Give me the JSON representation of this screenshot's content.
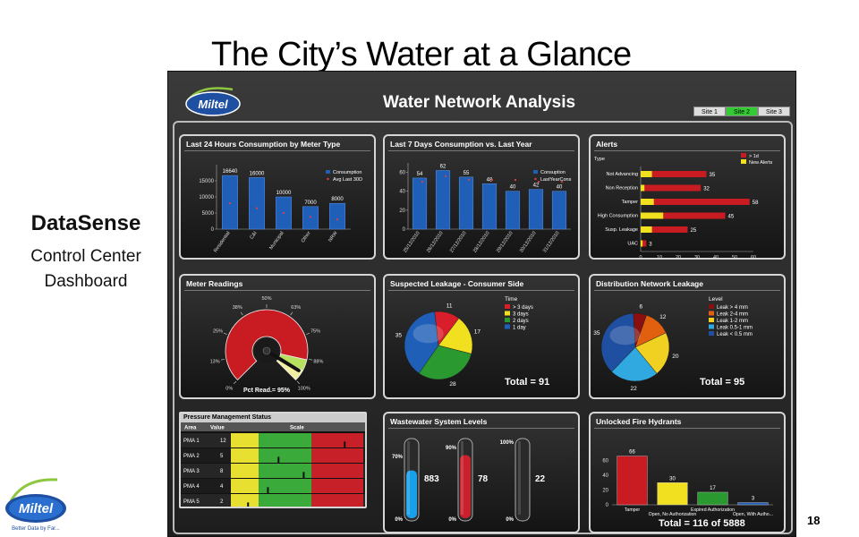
{
  "slide": {
    "title": "The City’s Water at a Glance",
    "left_title": "DataSense",
    "left_sub1": "Control Center",
    "left_sub2": "Dashboard",
    "page_number": "18",
    "logo_text": "Miltel",
    "logo_tagline": "Better Data by Far..."
  },
  "app": {
    "logo_text": "Miltel",
    "title": "Water Network Analysis",
    "tabs": [
      {
        "label": "Site 1",
        "active": false
      },
      {
        "label": "Site 2",
        "active": true
      },
      {
        "label": "Site 3",
        "active": false
      }
    ]
  },
  "panels": {
    "consumption24": {
      "title": "Last 24 Hours Consumption by Meter Type",
      "legend": [
        "Consumption",
        "Avg Last 30D"
      ],
      "yticks": [
        "15000",
        "10000",
        "5000",
        "0"
      ],
      "categories": [
        "Residential",
        "C&I",
        "Municipal",
        "Other",
        "NRW"
      ],
      "values": [
        16640,
        16000,
        10000,
        7000,
        8000
      ],
      "labels": [
        "16640",
        "16000",
        "10000",
        "7000",
        "8000"
      ],
      "avg": [
        8000,
        6500,
        5000,
        3800,
        3000
      ],
      "ymax": 20000
    },
    "consumption7": {
      "title": "Last 7 Days Consumption vs. Last Year",
      "legend": [
        "Consuption",
        "LastYearCons"
      ],
      "yticks": [
        "60",
        "40",
        "20",
        "0"
      ],
      "categories": [
        "25/12/2010",
        "26/12/2010",
        "27/12/2010",
        "28/12/2010",
        "29/12/2010",
        "30/12/2010",
        "31/12/2010"
      ],
      "values": [
        54,
        62,
        55,
        48,
        40,
        42,
        40
      ],
      "labels": [
        "54",
        "62",
        "55",
        "48",
        "40",
        "42",
        "40"
      ],
      "lastyear": [
        50,
        56,
        52,
        52,
        52,
        50,
        50
      ],
      "ymax": 70
    },
    "alerts": {
      "title": "Alerts",
      "type_label": "Type",
      "legend": [
        "> 1d",
        "New Alerts"
      ],
      "categories": [
        "Not Advancing",
        "Non Reception",
        "Tamper",
        "High Consumption",
        "Susp. Leakage",
        "UAC"
      ],
      "totals": [
        35,
        32,
        58,
        45,
        25,
        3
      ],
      "new_alerts": [
        6,
        2,
        7,
        12,
        6,
        1
      ],
      "labels": [
        "35",
        "32",
        "58",
        "45",
        "25",
        "3"
      ],
      "xticks": [
        "0",
        "10",
        "20",
        "30",
        "40",
        "50",
        "60"
      ],
      "xmax": 60
    },
    "meter": {
      "title": "Meter Readings",
      "ticks": [
        "0%",
        "13%",
        "25%",
        "38%",
        "50%",
        "63%",
        "75%",
        "88%",
        "100%"
      ],
      "readout": "Pct Read.= 95%",
      "value": 95
    },
    "leak_consumer": {
      "title": "Suspected Leakage - Consumer Side",
      "legend_title": "Time",
      "legend": [
        "> 3 days",
        "3 days",
        "2 days",
        "1 day"
      ],
      "colors": [
        "#d81e2a",
        "#f0e020",
        "#2a9a30",
        "#1f5fb8"
      ],
      "values": [
        11,
        17,
        28,
        35
      ],
      "slice_labels": [
        "11",
        "17",
        "28",
        "35"
      ],
      "total": "Total = 91"
    },
    "leak_network": {
      "title": "Distribution Network Leakage",
      "legend_title": "Level",
      "legend": [
        "Leak > 4 mm",
        "Leak 2-4 mm",
        "Leak 1-2 mm",
        "Leak 0.5-1 mm",
        "Leak < 0.5 mm"
      ],
      "colors": [
        "#8a1010",
        "#e06010",
        "#f0d020",
        "#30a8e0",
        "#1f4fa0"
      ],
      "values": [
        6,
        12,
        20,
        22,
        35
      ],
      "slice_labels": [
        "6",
        "12",
        "20",
        "22",
        "35"
      ],
      "total": "Total = 95"
    },
    "pressure": {
      "title": "Pressure Management Status",
      "col_area": "Area",
      "col_value": "Value",
      "col_scale": "Scale",
      "rows": [
        {
          "area": "PMA 1",
          "value": "12",
          "pos": 0.86
        },
        {
          "area": "PMA 2",
          "value": "5",
          "pos": 0.36
        },
        {
          "area": "PMA 3",
          "value": "8",
          "pos": 0.55
        },
        {
          "area": "PMA 4",
          "value": "4",
          "pos": 0.28
        },
        {
          "area": "PMA 5",
          "value": "2",
          "pos": 0.13
        }
      ]
    },
    "wastewater": {
      "title": "Wastewater System Levels",
      "tubes": [
        {
          "value": "883",
          "max": "70%",
          "min": "0%",
          "fill": 0.62,
          "color": "#1aa0e8"
        },
        {
          "value": "78",
          "max": "90%",
          "min": "0%",
          "fill": 0.82,
          "color": "#c8202c"
        },
        {
          "value": "22",
          "max": "100%",
          "min": "0%",
          "fill": 0.0,
          "color": "#888"
        }
      ]
    },
    "hydrants": {
      "title": "Unlocked Fire Hydrants",
      "yticks": [
        "60",
        "40",
        "20",
        "0"
      ],
      "categories": [
        "Tamper",
        "Open, No Authorization",
        "Expired Authorization",
        "Open, With Autho..."
      ],
      "values": [
        66,
        30,
        17,
        3
      ],
      "labels": [
        "66",
        "30",
        "17",
        "3"
      ],
      "colors": [
        "#c81c22",
        "#f0e020",
        "#2a9a30",
        "#1f5fb8"
      ],
      "ymax": 80,
      "total": "Total = 116 of 5888"
    }
  },
  "colors": {
    "bar_blue": "#1f5fb8",
    "alert_red": "#c81c22",
    "alert_yellow": "#f0e020",
    "avg_dot": "#e04040"
  }
}
